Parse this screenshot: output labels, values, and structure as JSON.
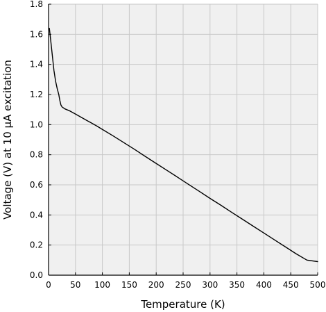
{
  "chart_data": {
    "type": "line",
    "title": "",
    "xlabel": "Temperature (K)",
    "ylabel": "Voltage (V) at 10 μA excitation",
    "xlim": [
      0,
      500
    ],
    "ylim": [
      0.0,
      1.8
    ],
    "xticks": [
      0,
      50,
      100,
      150,
      200,
      250,
      300,
      350,
      400,
      450,
      500
    ],
    "yticks": [
      0.0,
      0.2,
      0.4,
      0.6,
      0.8,
      1.0,
      1.2,
      1.4,
      1.6,
      1.8
    ],
    "xtick_labels": [
      "0",
      "50",
      "100",
      "150",
      "200",
      "250",
      "300",
      "350",
      "400",
      "450",
      "500"
    ],
    "ytick_labels": [
      "0.0",
      "0.2",
      "0.4",
      "0.6",
      "0.8",
      "1.0",
      "1.2",
      "1.4",
      "1.6",
      "1.8"
    ],
    "grid": true,
    "colors": {
      "line": "#000000",
      "grid": "#c8c8c8",
      "plot_background": "#f0f0f0",
      "axes": "#000000"
    },
    "series": [
      {
        "x": [
          1.5,
          4,
          7,
          10,
          13,
          16,
          19,
          21,
          23,
          25,
          30,
          40,
          50,
          60,
          70,
          80,
          90,
          100,
          120,
          140,
          160,
          180,
          200,
          220,
          240,
          260,
          280,
          300,
          320,
          340,
          360,
          380,
          400,
          420,
          440,
          460,
          480,
          500
        ],
        "y": [
          1.64,
          1.56,
          1.46,
          1.36,
          1.29,
          1.24,
          1.2,
          1.16,
          1.13,
          1.118,
          1.105,
          1.09,
          1.07,
          1.05,
          1.03,
          1.01,
          0.99,
          0.968,
          0.925,
          0.88,
          0.835,
          0.788,
          0.742,
          0.696,
          0.65,
          0.603,
          0.557,
          0.51,
          0.465,
          0.418,
          0.372,
          0.326,
          0.28,
          0.234,
          0.188,
          0.142,
          0.1,
          0.09
        ]
      }
    ]
  }
}
